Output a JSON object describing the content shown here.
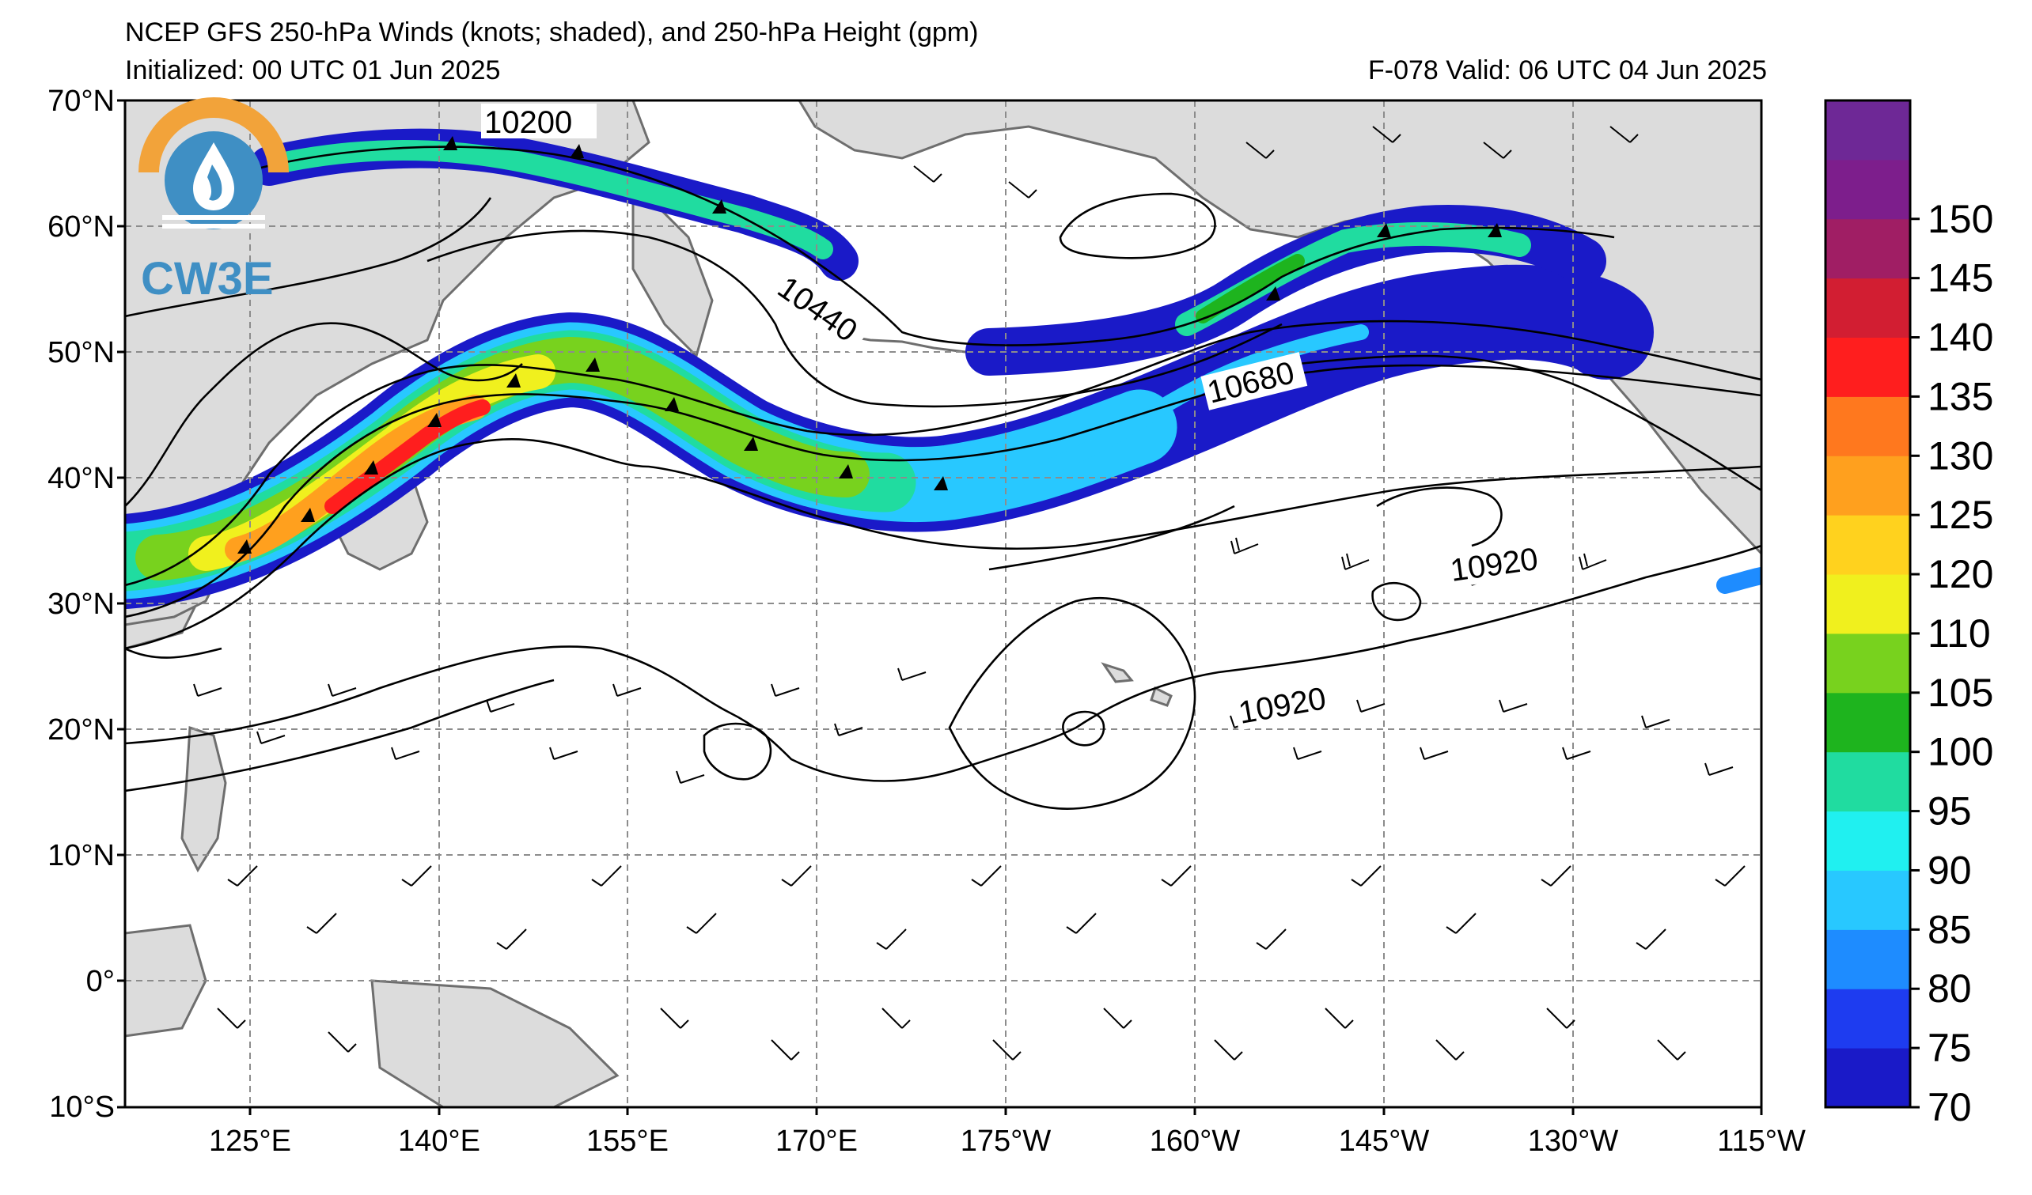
{
  "header": {
    "title": "NCEP GFS 250-hPa Winds (knots; shaded), and 250-hPa Height (gpm)",
    "initialized": "Initialized: 00 UTC 01 Jun 2025",
    "valid": "F-078  Valid: 06 UTC 04 Jun 2025"
  },
  "logo": {
    "text": "CW3E",
    "ring_color": "#f2a33a",
    "drop_color": "#3f8fc4"
  },
  "axes": {
    "lat_labels": [
      "70°N",
      "60°N",
      "50°N",
      "40°N",
      "30°N",
      "20°N",
      "10°N",
      "0°",
      "10°S"
    ],
    "lon_labels": [
      "125°E",
      "140°E",
      "155°E",
      "170°E",
      "175°W",
      "160°W",
      "145°W",
      "130°W",
      "115°W"
    ],
    "lat_range": [
      -10,
      70
    ],
    "lon_range_east": [
      115,
      245
    ]
  },
  "colorbar": {
    "ticks": [
      "70",
      "75",
      "80",
      "85",
      "90",
      "95",
      "100",
      "105",
      "110",
      "120",
      "125",
      "130",
      "135",
      "140",
      "145",
      "150"
    ],
    "colors": [
      "#1a1ac8",
      "#1e3cf0",
      "#1e8cff",
      "#28c8ff",
      "#20f0f0",
      "#20dca0",
      "#1eb41e",
      "#78d21e",
      "#f0f01e",
      "#ffd21e",
      "#ffa01e",
      "#ff781e",
      "#ff1e1e",
      "#d21e32",
      "#a01e64",
      "#7d1e8c",
      "#6e2896"
    ]
  },
  "height_labels": {
    "h10200": "10200",
    "h10440": "10440",
    "h10680": "10680",
    "h10920a": "10920",
    "h10920b": "10920"
  },
  "colors": {
    "land": "#dcdcdc",
    "coast": "#6e6e6e",
    "grid": "#8c8c8c",
    "contour": "#000000"
  }
}
